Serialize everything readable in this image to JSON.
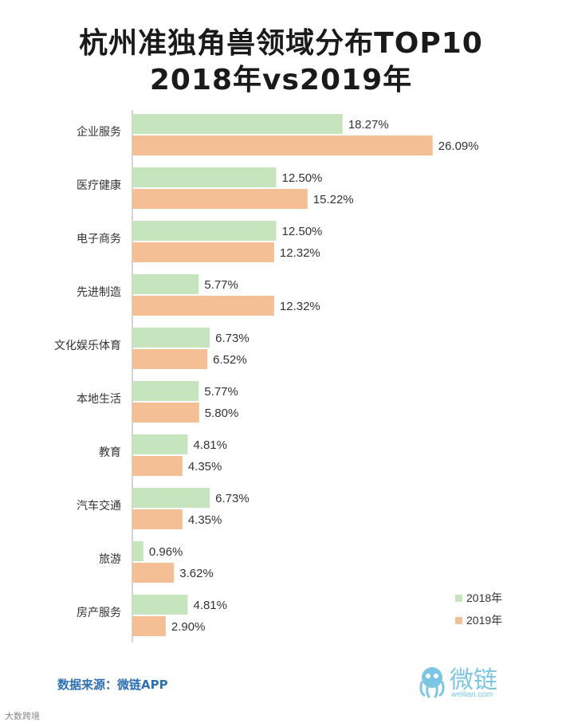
{
  "title_line1": "杭州准独角兽领域分布TOP10",
  "title_line2": "2018年vs2019年",
  "source": "数据来源：微链APP",
  "logo_text": "微链",
  "logo_sub": "weilian.com",
  "watermark": "大数跨境",
  "colors": {
    "s2018": "#c6e4bd",
    "s2019": "#f4bf95",
    "axis": "#aaaaaa",
    "icon": "#7cc6e4"
  },
  "chart_data": {
    "type": "bar",
    "orientation": "horizontal",
    "categories": [
      "企业服务",
      "医疗健康",
      "电子商务",
      "先进制造",
      "文化娱乐体育",
      "本地生活",
      "教育",
      "汽车交通",
      "旅游",
      "房产服务"
    ],
    "series": [
      {
        "name": "2018年",
        "values": [
          18.27,
          12.5,
          12.5,
          5.77,
          6.73,
          5.77,
          4.81,
          6.73,
          0.96,
          4.81
        ],
        "labels": [
          "18.27%",
          "12.50%",
          "12.50%",
          "5.77%",
          "6.73%",
          "5.77%",
          "4.81%",
          "6.73%",
          "0.96%",
          "4.81%"
        ]
      },
      {
        "name": "2019年",
        "values": [
          26.09,
          15.22,
          12.32,
          12.32,
          6.52,
          5.8,
          4.35,
          4.35,
          3.62,
          2.9
        ],
        "labels": [
          "26.09%",
          "15.22%",
          "12.32%",
          "12.32%",
          "6.52%",
          "5.80%",
          "4.35%",
          "4.35%",
          "3.62%",
          "2.90%"
        ]
      }
    ],
    "xlim": [
      0,
      30
    ],
    "legend_position": "bottom-right",
    "grid": false
  }
}
